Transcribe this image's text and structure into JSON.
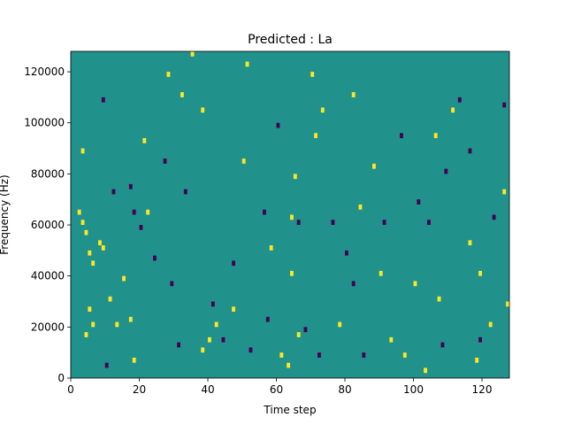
{
  "chart_data": {
    "type": "heatmap",
    "title": "Predicted : La",
    "xlabel": "Time step",
    "ylabel": "Frequency (Hz)",
    "xlim": [
      0,
      128
    ],
    "ylim": [
      0,
      128000
    ],
    "xticks": [
      0,
      20,
      40,
      60,
      80,
      100,
      120
    ],
    "xtick_labels": [
      "0",
      "20",
      "40",
      "60",
      "80",
      "100",
      "120"
    ],
    "yticks": [
      0,
      20000,
      40000,
      60000,
      80000,
      100000,
      120000
    ],
    "ytick_labels": [
      "0",
      "20000",
      "40000",
      "60000",
      "80000",
      "100000",
      "120000"
    ],
    "grid": false,
    "colors": {
      "background": "#21918c",
      "high": "#fde725",
      "low": "#440154"
    },
    "cells": [
      {
        "t": 2,
        "f": 64000,
        "v": "high"
      },
      {
        "t": 3,
        "f": 60000,
        "v": "high"
      },
      {
        "t": 4,
        "f": 56000,
        "v": "high"
      },
      {
        "t": 5,
        "f": 48000,
        "v": "high"
      },
      {
        "t": 6,
        "f": 44000,
        "v": "high"
      },
      {
        "t": 5,
        "f": 26000,
        "v": "high"
      },
      {
        "t": 6,
        "f": 20000,
        "v": "high"
      },
      {
        "t": 4,
        "f": 16000,
        "v": "high"
      },
      {
        "t": 3,
        "f": 88000,
        "v": "high"
      },
      {
        "t": 8,
        "f": 52000,
        "v": "high"
      },
      {
        "t": 9,
        "f": 50000,
        "v": "high"
      },
      {
        "t": 11,
        "f": 30000,
        "v": "high"
      },
      {
        "t": 13,
        "f": 20000,
        "v": "high"
      },
      {
        "t": 15,
        "f": 38000,
        "v": "high"
      },
      {
        "t": 17,
        "f": 22000,
        "v": "high"
      },
      {
        "t": 18,
        "f": 6000,
        "v": "high"
      },
      {
        "t": 22,
        "f": 64000,
        "v": "high"
      },
      {
        "t": 21,
        "f": 92000,
        "v": "high"
      },
      {
        "t": 28,
        "f": 118000,
        "v": "high"
      },
      {
        "t": 32,
        "f": 110000,
        "v": "high"
      },
      {
        "t": 35,
        "f": 126000,
        "v": "high"
      },
      {
        "t": 38,
        "f": 104000,
        "v": "high"
      },
      {
        "t": 40,
        "f": 14000,
        "v": "high"
      },
      {
        "t": 38,
        "f": 10000,
        "v": "high"
      },
      {
        "t": 42,
        "f": 20000,
        "v": "high"
      },
      {
        "t": 47,
        "f": 26000,
        "v": "high"
      },
      {
        "t": 50,
        "f": 84000,
        "v": "high"
      },
      {
        "t": 51,
        "f": 122000,
        "v": "high"
      },
      {
        "t": 58,
        "f": 50000,
        "v": "high"
      },
      {
        "t": 61,
        "f": 8000,
        "v": "high"
      },
      {
        "t": 63,
        "f": 4000,
        "v": "high"
      },
      {
        "t": 64,
        "f": 62000,
        "v": "high"
      },
      {
        "t": 65,
        "f": 78000,
        "v": "high"
      },
      {
        "t": 64,
        "f": 40000,
        "v": "high"
      },
      {
        "t": 66,
        "f": 16000,
        "v": "high"
      },
      {
        "t": 70,
        "f": 118000,
        "v": "high"
      },
      {
        "t": 71,
        "f": 94000,
        "v": "high"
      },
      {
        "t": 73,
        "f": 104000,
        "v": "high"
      },
      {
        "t": 78,
        "f": 20000,
        "v": "high"
      },
      {
        "t": 82,
        "f": 110000,
        "v": "high"
      },
      {
        "t": 84,
        "f": 66000,
        "v": "high"
      },
      {
        "t": 88,
        "f": 82000,
        "v": "high"
      },
      {
        "t": 90,
        "f": 40000,
        "v": "high"
      },
      {
        "t": 93,
        "f": 14000,
        "v": "high"
      },
      {
        "t": 97,
        "f": 8000,
        "v": "high"
      },
      {
        "t": 100,
        "f": 36000,
        "v": "high"
      },
      {
        "t": 103,
        "f": 2000,
        "v": "high"
      },
      {
        "t": 106,
        "f": 94000,
        "v": "high"
      },
      {
        "t": 107,
        "f": 30000,
        "v": "high"
      },
      {
        "t": 111,
        "f": 104000,
        "v": "high"
      },
      {
        "t": 116,
        "f": 52000,
        "v": "high"
      },
      {
        "t": 118,
        "f": 6000,
        "v": "high"
      },
      {
        "t": 119,
        "f": 40000,
        "v": "high"
      },
      {
        "t": 122,
        "f": 20000,
        "v": "high"
      },
      {
        "t": 126,
        "f": 72000,
        "v": "high"
      },
      {
        "t": 127,
        "f": 28000,
        "v": "high"
      },
      {
        "t": 9,
        "f": 108000,
        "v": "low"
      },
      {
        "t": 12,
        "f": 72000,
        "v": "low"
      },
      {
        "t": 10,
        "f": 4000,
        "v": "low"
      },
      {
        "t": 17,
        "f": 74000,
        "v": "low"
      },
      {
        "t": 18,
        "f": 64000,
        "v": "low"
      },
      {
        "t": 20,
        "f": 58000,
        "v": "low"
      },
      {
        "t": 24,
        "f": 46000,
        "v": "low"
      },
      {
        "t": 27,
        "f": 84000,
        "v": "low"
      },
      {
        "t": 29,
        "f": 36000,
        "v": "low"
      },
      {
        "t": 31,
        "f": 12000,
        "v": "low"
      },
      {
        "t": 33,
        "f": 72000,
        "v": "low"
      },
      {
        "t": 41,
        "f": 28000,
        "v": "low"
      },
      {
        "t": 44,
        "f": 14000,
        "v": "low"
      },
      {
        "t": 47,
        "f": 44000,
        "v": "low"
      },
      {
        "t": 52,
        "f": 10000,
        "v": "low"
      },
      {
        "t": 56,
        "f": 64000,
        "v": "low"
      },
      {
        "t": 57,
        "f": 22000,
        "v": "low"
      },
      {
        "t": 60,
        "f": 98000,
        "v": "low"
      },
      {
        "t": 66,
        "f": 60000,
        "v": "low"
      },
      {
        "t": 68,
        "f": 18000,
        "v": "low"
      },
      {
        "t": 72,
        "f": 8000,
        "v": "low"
      },
      {
        "t": 76,
        "f": 60000,
        "v": "low"
      },
      {
        "t": 80,
        "f": 48000,
        "v": "low"
      },
      {
        "t": 82,
        "f": 36000,
        "v": "low"
      },
      {
        "t": 85,
        "f": 8000,
        "v": "low"
      },
      {
        "t": 91,
        "f": 60000,
        "v": "low"
      },
      {
        "t": 96,
        "f": 94000,
        "v": "low"
      },
      {
        "t": 101,
        "f": 68000,
        "v": "low"
      },
      {
        "t": 104,
        "f": 60000,
        "v": "low"
      },
      {
        "t": 108,
        "f": 12000,
        "v": "low"
      },
      {
        "t": 109,
        "f": 80000,
        "v": "low"
      },
      {
        "t": 113,
        "f": 108000,
        "v": "low"
      },
      {
        "t": 116,
        "f": 88000,
        "v": "low"
      },
      {
        "t": 119,
        "f": 14000,
        "v": "low"
      },
      {
        "t": 123,
        "f": 62000,
        "v": "low"
      },
      {
        "t": 126,
        "f": 106000,
        "v": "low"
      }
    ]
  }
}
